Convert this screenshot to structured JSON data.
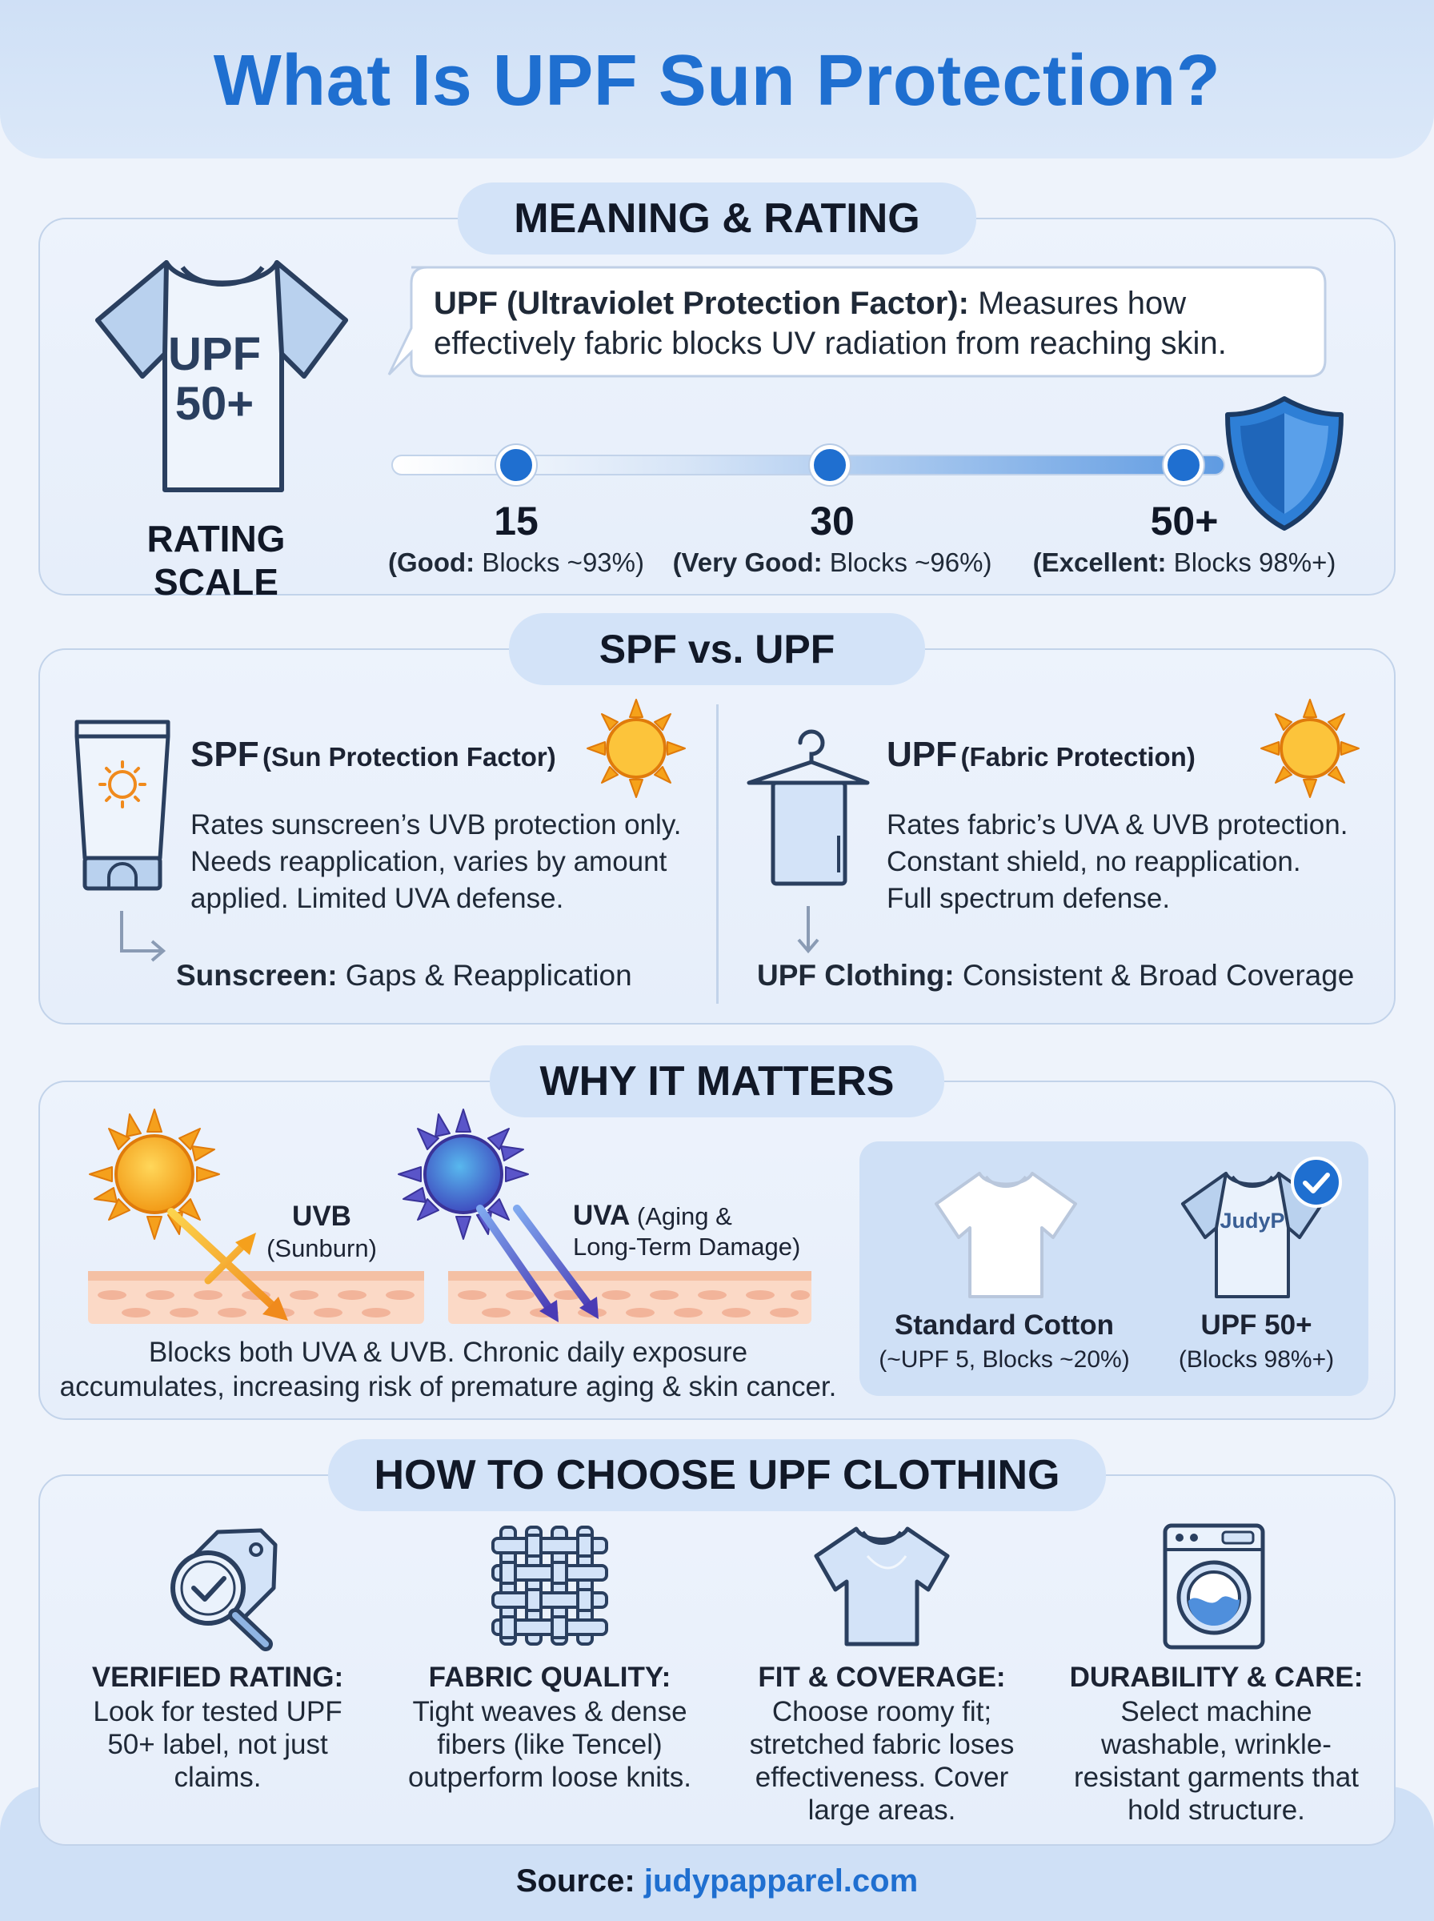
{
  "title": "What Is UPF Sun Protection?",
  "sections": {
    "meaning": {
      "heading": "MEANING & RATING",
      "shirt_label_line1": "UPF",
      "shirt_label_line2": "50+",
      "rating_scale_label": "RATING SCALE",
      "definition_term": "UPF (Ultraviolet Protection Factor):",
      "definition_text_1": " Measures how",
      "definition_text_2": "effectively fabric blocks UV radiation from reaching skin.",
      "scale": [
        {
          "value": "15",
          "grade": "(Good:",
          "desc": " Blocks ~93%)"
        },
        {
          "value": "30",
          "grade": "(Very Good:",
          "desc": " Blocks ~96%)"
        },
        {
          "value": "50+",
          "grade": "(Excellent:",
          "desc": " Blocks 98%+)"
        }
      ]
    },
    "spf_vs_upf": {
      "heading": "SPF vs. UPF",
      "spf": {
        "abbr": "SPF",
        "name": "(Sun Protection Factor)",
        "lines": [
          "Rates sunscreen’s UVB protection only.",
          "Needs reapplication, varies by amount",
          "applied. Limited UVA defense."
        ],
        "result_label": "Sunscreen:",
        "result_text": " Gaps & Reapplication"
      },
      "upf": {
        "abbr": "UPF",
        "name": "(Fabric Protection)",
        "lines": [
          "Rates fabric’s UVA & UVB protection.",
          "Constant shield, no reapplication.",
          "Full spectrum defense."
        ],
        "result_label": "UPF Clothing:",
        "result_text": " Consistent & Broad Coverage"
      }
    },
    "why": {
      "heading": "WHY IT MATTERS",
      "uvb_label": "UVB",
      "uvb_sub": "(Sunburn)",
      "uva_label": "UVA",
      "uva_sub_1": " (Aging &",
      "uva_sub_2": "Long-Term Damage)",
      "body_1": "Blocks both UVA & UVB. Chronic daily exposure",
      "body_2": "accumulates, increasing risk of premature aging & skin cancer.",
      "compare": {
        "cotton_title": "Standard Cotton",
        "cotton_sub": "(~UPF 5, Blocks ~20%)",
        "upf_brand": "JudyP",
        "upf_title": "UPF 50+",
        "upf_sub": "(Blocks 98%+)"
      }
    },
    "choose": {
      "heading": "HOW TO CHOOSE UPF CLOTHING",
      "items": [
        {
          "title": "VERIFIED RATING:",
          "lines": [
            "Look for tested UPF",
            "50+ label, not just",
            "claims."
          ]
        },
        {
          "title": "FABRIC QUALITY:",
          "lines": [
            "Tight weaves & dense",
            "fibers (like Tencel)",
            "outperform loose knits."
          ]
        },
        {
          "title": "FIT & COVERAGE:",
          "lines": [
            "Choose roomy fit;",
            "stretched fabric loses",
            "effectiveness. Cover",
            "large areas."
          ]
        },
        {
          "title": "DURABILITY & CARE:",
          "lines": [
            "Select machine",
            "washable, wrinkle-",
            "resistant garments that",
            "hold structure."
          ]
        }
      ]
    }
  },
  "source": {
    "label": "Source:",
    "link": " judypapparel.com"
  },
  "colors": {
    "title_blue": "#1f6fd0",
    "link_blue": "#1f6fd0",
    "dot_blue": "#1f6fd0",
    "panel_bg": "#e8f0fb",
    "pill_bg": "#d3e3f8"
  }
}
